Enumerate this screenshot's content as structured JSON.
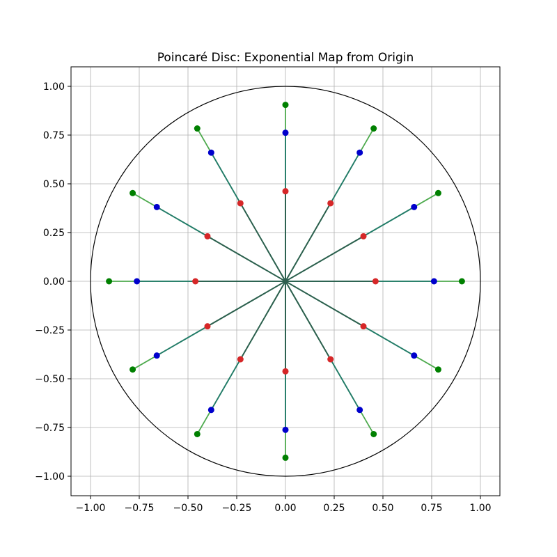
{
  "chart_data": {
    "type": "scatter",
    "title": "Poincaré Disc: Exponential Map from Origin",
    "xlabel": "",
    "ylabel": "",
    "xlim": [
      -1.1,
      1.1
    ],
    "ylim": [
      -1.1,
      1.1
    ],
    "grid": true,
    "legend": "none",
    "aspect": "equal",
    "x_ticks": [
      -1.0,
      -0.75,
      -0.5,
      -0.25,
      0.0,
      0.25,
      0.5,
      0.75,
      1.0
    ],
    "x_tick_labels": [
      "−1.00",
      "−0.75",
      "−0.50",
      "−0.25",
      "0.00",
      "0.25",
      "0.50",
      "0.75",
      "1.00"
    ],
    "y_ticks": [
      1.0,
      0.75,
      0.5,
      0.25,
      0.0,
      -0.25,
      -0.5,
      -0.75,
      -1.0
    ],
    "y_tick_labels": [
      "1.00",
      "0.75",
      "0.50",
      "0.25",
      "0.00",
      "−0.25",
      "−0.50",
      "−0.75",
      "−1.00"
    ],
    "boundary_circle": {
      "center": [
        0,
        0
      ],
      "radius": 1.0,
      "color": "#000000"
    },
    "origin": [
      0,
      0
    ],
    "directions_deg": [
      0,
      30,
      60,
      90,
      120,
      150,
      180,
      210,
      240,
      270,
      300,
      330
    ],
    "series": [
      {
        "radius": 0.462,
        "color": "#d62728",
        "line_color": "#2e5e4e"
      },
      {
        "radius": 0.762,
        "color": "#0000cc",
        "line_color": "#217a6b"
      },
      {
        "radius": 0.905,
        "color": "#008000",
        "line_color": "#4daa4d"
      }
    ]
  }
}
